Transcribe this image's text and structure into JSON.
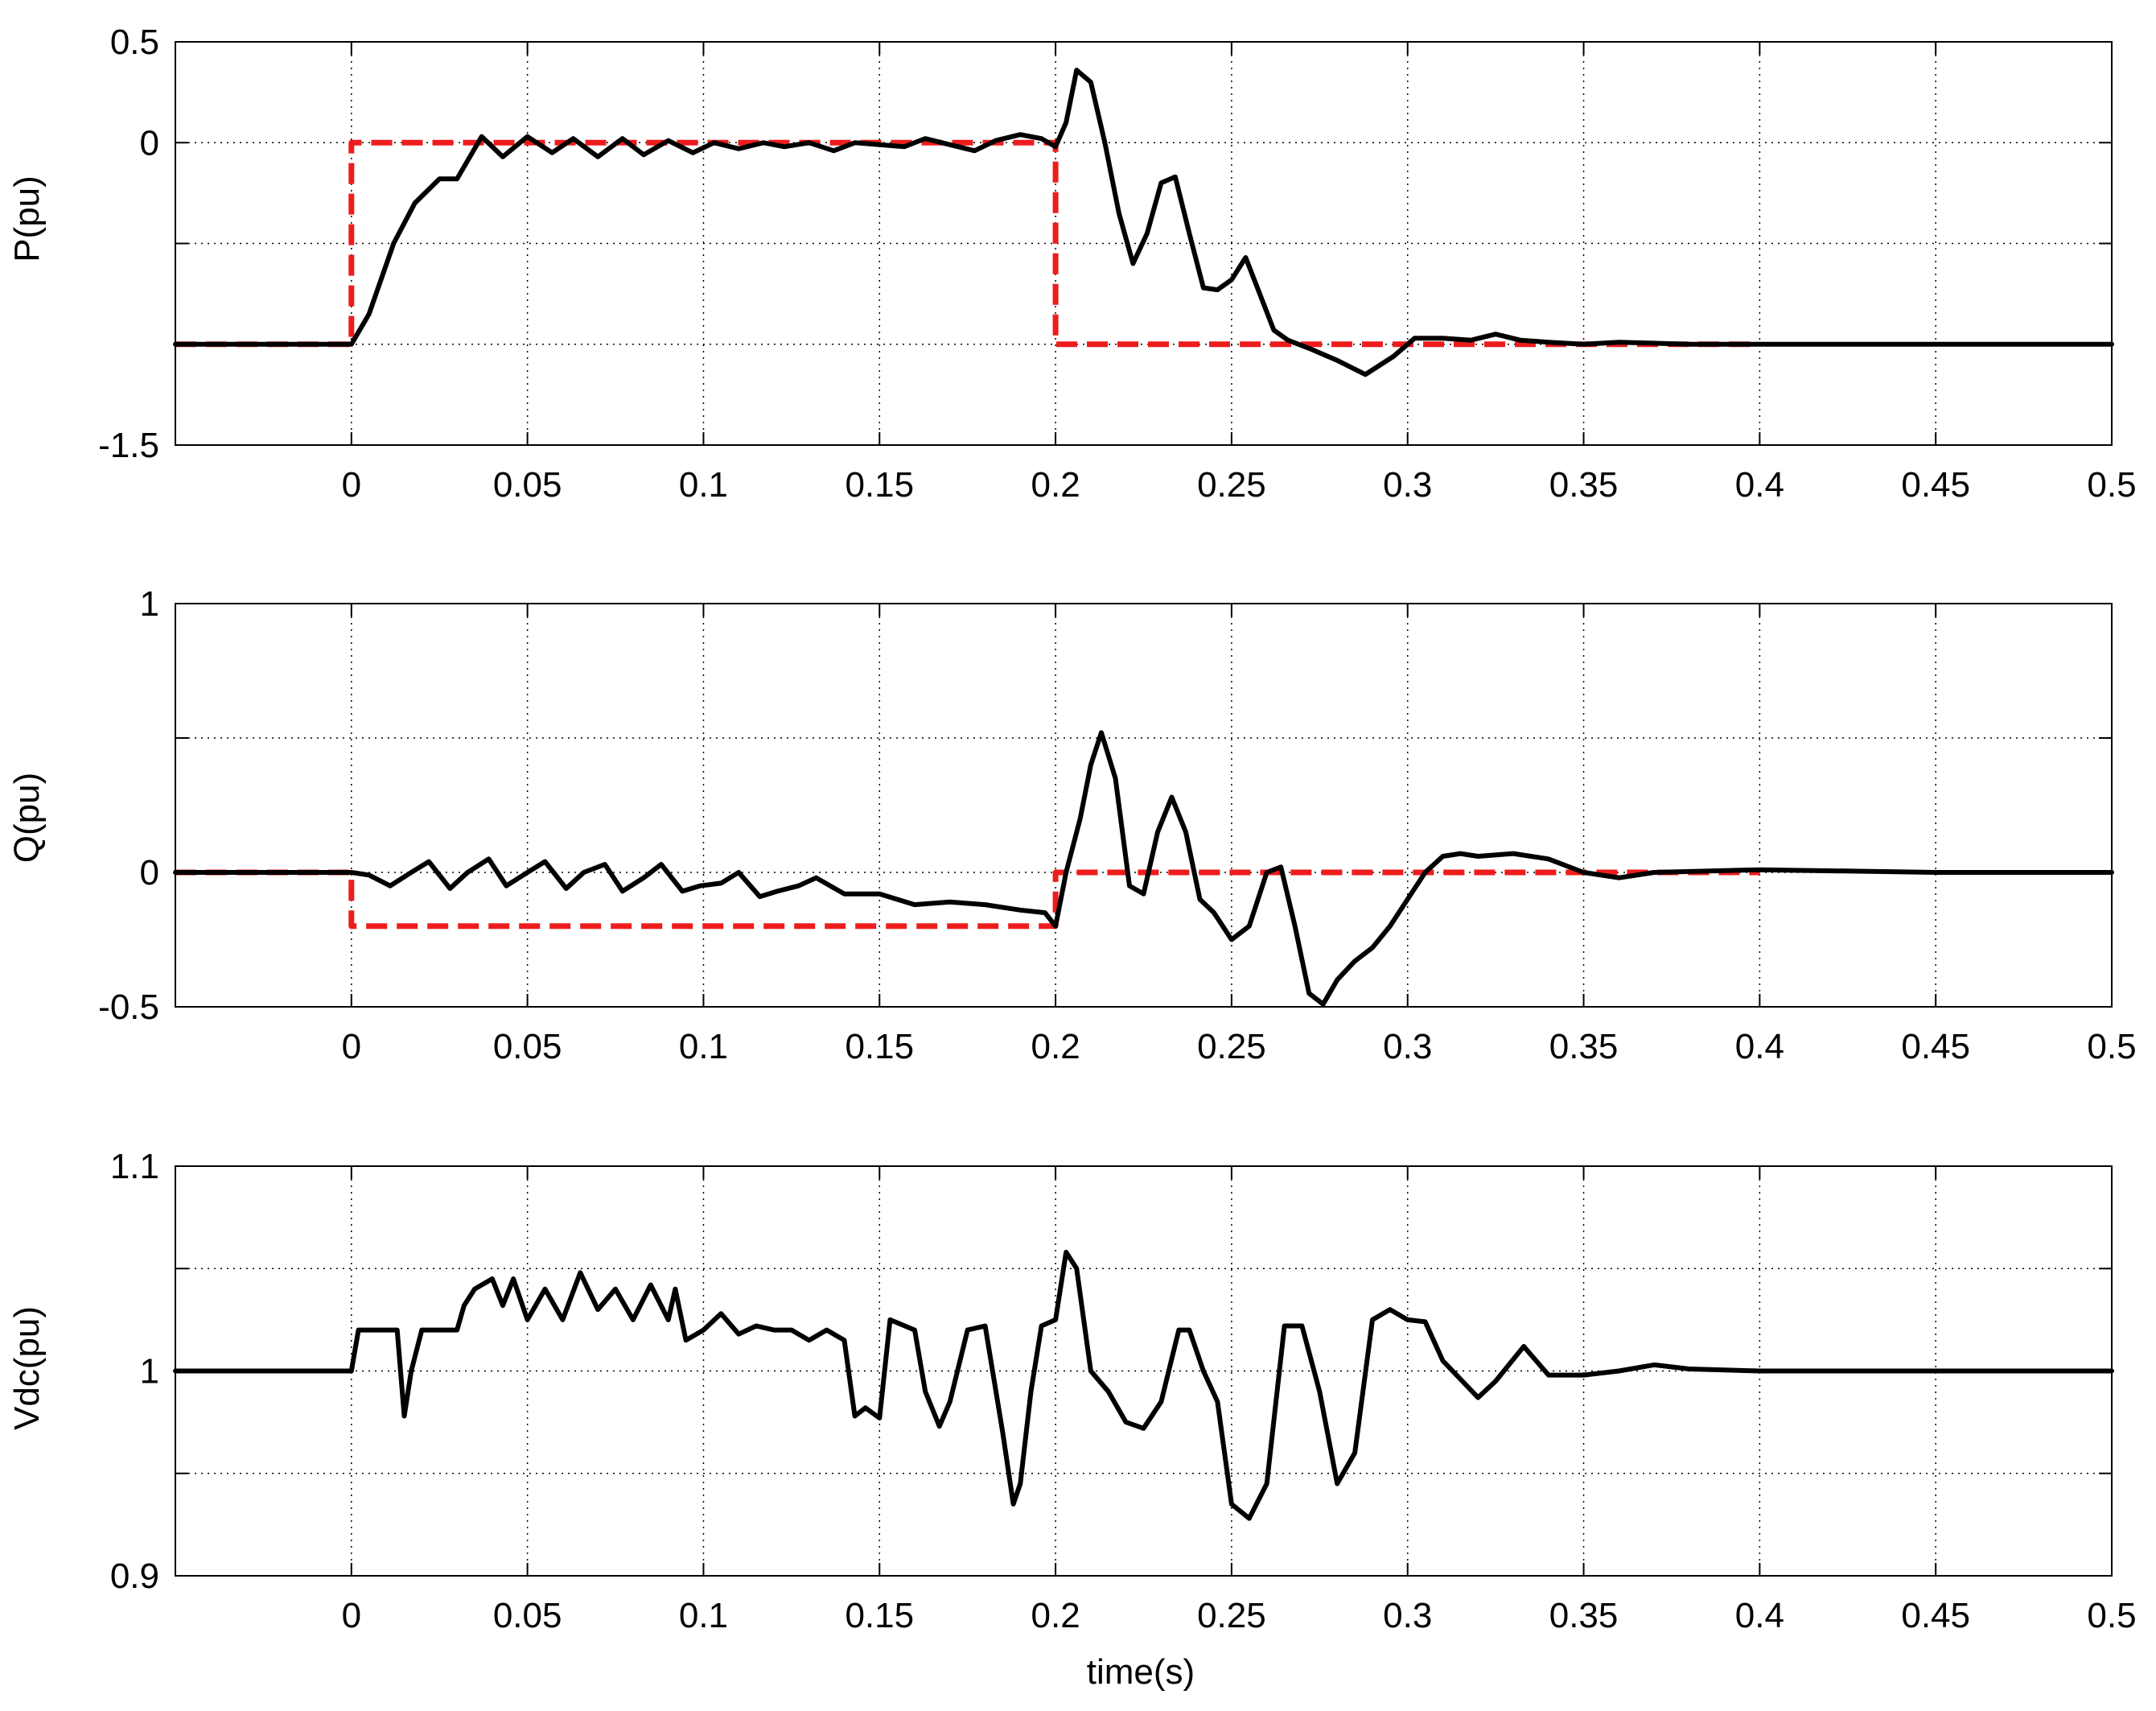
{
  "chart_data": [
    {
      "type": "line",
      "ylabel": "P(pu)",
      "xlim": [
        -0.05,
        0.5
      ],
      "ylim": [
        -1.5,
        0.5
      ],
      "xticks": [
        0,
        0.05,
        0.1,
        0.15,
        0.2,
        0.25,
        0.3,
        0.35,
        0.4,
        0.45,
        0.5
      ],
      "xtick_labels": [
        "0",
        "0.05",
        "0.1",
        "0.15",
        "0.2",
        "0.25",
        "0.3",
        "0.35",
        "0.4",
        "0.45",
        "0.5"
      ],
      "yticks": [
        -1.5,
        -1,
        -0.5,
        0,
        0.5
      ],
      "ytick_labels": [
        "-1.5",
        "",
        "",
        "0",
        "0.5"
      ],
      "grid": true,
      "series": [
        {
          "role": "measured",
          "color": "#000000",
          "style": "solid",
          "x": [
            -0.05,
            0,
            0.005,
            0.012,
            0.018,
            0.025,
            0.03,
            0.037,
            0.043,
            0.05,
            0.057,
            0.063,
            0.07,
            0.077,
            0.083,
            0.09,
            0.097,
            0.103,
            0.11,
            0.117,
            0.123,
            0.13,
            0.137,
            0.143,
            0.15,
            0.157,
            0.163,
            0.17,
            0.177,
            0.183,
            0.19,
            0.196,
            0.2,
            0.203,
            0.206,
            0.21,
            0.214,
            0.218,
            0.222,
            0.226,
            0.23,
            0.234,
            0.238,
            0.242,
            0.246,
            0.25,
            0.254,
            0.258,
            0.262,
            0.266,
            0.272,
            0.28,
            0.288,
            0.296,
            0.302,
            0.31,
            0.318,
            0.325,
            0.332,
            0.34,
            0.35,
            0.36,
            0.38,
            0.4,
            0.45,
            0.5
          ],
          "y": [
            -1,
            -1,
            -0.85,
            -0.5,
            -0.3,
            -0.18,
            -0.18,
            0.03,
            -0.07,
            0.03,
            -0.05,
            0.02,
            -0.07,
            0.02,
            -0.06,
            0.01,
            -0.05,
            0.0,
            -0.03,
            0.0,
            -0.02,
            0.0,
            -0.04,
            0.0,
            -0.01,
            -0.02,
            0.02,
            -0.01,
            -0.04,
            0.01,
            0.04,
            0.02,
            -0.02,
            0.1,
            0.36,
            0.3,
            0.0,
            -0.35,
            -0.6,
            -0.45,
            -0.2,
            -0.17,
            -0.45,
            -0.72,
            -0.73,
            -0.68,
            -0.57,
            -0.75,
            -0.93,
            -0.98,
            -1.02,
            -1.08,
            -1.15,
            -1.06,
            -0.97,
            -0.97,
            -0.98,
            -0.95,
            -0.98,
            -0.99,
            -1.0,
            -0.99,
            -1.0,
            -1.0,
            -1.0,
            -1.0
          ]
        },
        {
          "role": "reference",
          "color": "#ee1c1c",
          "style": "dashed",
          "x": [
            -0.05,
            0,
            0,
            0.2,
            0.2,
            0.4
          ],
          "y": [
            -1,
            -1,
            0,
            0,
            -1,
            -1
          ]
        }
      ]
    },
    {
      "type": "line",
      "ylabel": "Q(pu)",
      "xlim": [
        -0.05,
        0.5
      ],
      "ylim": [
        -0.5,
        1
      ],
      "xticks": [
        0,
        0.05,
        0.1,
        0.15,
        0.2,
        0.25,
        0.3,
        0.35,
        0.4,
        0.45,
        0.5
      ],
      "xtick_labels": [
        "0",
        "0.05",
        "0.1",
        "0.15",
        "0.2",
        "0.25",
        "0.3",
        "0.35",
        "0.4",
        "0.45",
        "0.5"
      ],
      "yticks": [
        -0.5,
        0,
        0.5,
        1
      ],
      "ytick_labels": [
        "-0.5",
        "0",
        "",
        "1"
      ],
      "grid": true,
      "series": [
        {
          "role": "measured",
          "color": "#000000",
          "style": "solid",
          "x": [
            -0.05,
            0,
            0.005,
            0.011,
            0.017,
            0.022,
            0.028,
            0.033,
            0.039,
            0.044,
            0.05,
            0.055,
            0.061,
            0.066,
            0.072,
            0.077,
            0.083,
            0.088,
            0.094,
            0.099,
            0.105,
            0.11,
            0.116,
            0.121,
            0.127,
            0.132,
            0.14,
            0.15,
            0.16,
            0.17,
            0.18,
            0.19,
            0.197,
            0.2,
            0.203,
            0.207,
            0.21,
            0.213,
            0.217,
            0.221,
            0.225,
            0.229,
            0.233,
            0.237,
            0.241,
            0.245,
            0.25,
            0.255,
            0.26,
            0.264,
            0.268,
            0.272,
            0.276,
            0.28,
            0.285,
            0.29,
            0.295,
            0.3,
            0.305,
            0.31,
            0.315,
            0.32,
            0.33,
            0.34,
            0.35,
            0.36,
            0.37,
            0.4,
            0.45,
            0.5
          ],
          "y": [
            0,
            0,
            -0.01,
            -0.05,
            0.0,
            0.04,
            -0.06,
            0.0,
            0.05,
            -0.05,
            0.0,
            0.04,
            -0.06,
            0.0,
            0.03,
            -0.07,
            -0.02,
            0.03,
            -0.07,
            -0.05,
            -0.04,
            0.0,
            -0.09,
            -0.07,
            -0.05,
            -0.02,
            -0.08,
            -0.08,
            -0.12,
            -0.11,
            -0.12,
            -0.14,
            -0.15,
            -0.2,
            0.0,
            0.2,
            0.4,
            0.52,
            0.35,
            -0.05,
            -0.08,
            0.15,
            0.28,
            0.15,
            -0.1,
            -0.15,
            -0.25,
            -0.2,
            0.0,
            0.02,
            -0.2,
            -0.45,
            -0.49,
            -0.4,
            -0.33,
            -0.28,
            -0.2,
            -0.1,
            0.0,
            0.06,
            0.07,
            0.06,
            0.07,
            0.05,
            0.0,
            -0.02,
            0.0,
            0.01,
            0.0,
            0.0
          ]
        },
        {
          "role": "reference",
          "color": "#ee1c1c",
          "style": "dashed",
          "x": [
            -0.05,
            0,
            0,
            0.2,
            0.2,
            0.4
          ],
          "y": [
            0,
            0,
            -0.2,
            -0.2,
            0,
            0
          ]
        }
      ]
    },
    {
      "type": "line",
      "ylabel": "Vdc(pu)",
      "xlabel": "time(s)",
      "xlim": [
        -0.05,
        0.5
      ],
      "ylim": [
        0.9,
        1.1
      ],
      "xticks": [
        0,
        0.05,
        0.1,
        0.15,
        0.2,
        0.25,
        0.3,
        0.35,
        0.4,
        0.45,
        0.5
      ],
      "xtick_labels": [
        "0",
        "0.05",
        "0.1",
        "0.15",
        "0.2",
        "0.25",
        "0.3",
        "0.35",
        "0.4",
        "0.45",
        "0.5"
      ],
      "yticks": [
        0.9,
        0.95,
        1,
        1.05,
        1.1
      ],
      "ytick_labels": [
        "0.9",
        "",
        "1",
        "",
        "1.1"
      ],
      "grid": true,
      "series": [
        {
          "role": "measured",
          "color": "#000000",
          "style": "solid",
          "x": [
            -0.05,
            0,
            0.002,
            0.01,
            0.013,
            0.015,
            0.017,
            0.02,
            0.03,
            0.032,
            0.035,
            0.04,
            0.043,
            0.046,
            0.05,
            0.055,
            0.06,
            0.065,
            0.07,
            0.075,
            0.08,
            0.085,
            0.09,
            0.092,
            0.095,
            0.1,
            0.105,
            0.11,
            0.115,
            0.12,
            0.125,
            0.13,
            0.135,
            0.14,
            0.143,
            0.146,
            0.15,
            0.153,
            0.16,
            0.163,
            0.167,
            0.17,
            0.175,
            0.18,
            0.185,
            0.188,
            0.19,
            0.193,
            0.196,
            0.2,
            0.203,
            0.206,
            0.21,
            0.215,
            0.22,
            0.225,
            0.23,
            0.235,
            0.238,
            0.242,
            0.246,
            0.25,
            0.255,
            0.26,
            0.265,
            0.27,
            0.275,
            0.28,
            0.285,
            0.29,
            0.295,
            0.3,
            0.305,
            0.31,
            0.32,
            0.325,
            0.333,
            0.34,
            0.345,
            0.35,
            0.36,
            0.37,
            0.38,
            0.4,
            0.45,
            0.5
          ],
          "y": [
            1.0,
            1.0,
            1.02,
            1.02,
            1.02,
            0.978,
            1.0,
            1.02,
            1.02,
            1.032,
            1.04,
            1.045,
            1.032,
            1.045,
            1.025,
            1.04,
            1.025,
            1.048,
            1.03,
            1.04,
            1.025,
            1.042,
            1.025,
            1.04,
            1.015,
            1.02,
            1.028,
            1.018,
            1.022,
            1.02,
            1.02,
            1.015,
            1.02,
            1.015,
            0.978,
            0.982,
            0.977,
            1.025,
            1.02,
            0.99,
            0.973,
            0.985,
            1.02,
            1.022,
            0.97,
            0.935,
            0.945,
            0.99,
            1.022,
            1.025,
            1.058,
            1.05,
            1.0,
            0.99,
            0.975,
            0.972,
            0.985,
            1.02,
            1.02,
            1.0,
            0.985,
            0.935,
            0.928,
            0.945,
            1.022,
            1.022,
            0.99,
            0.945,
            0.96,
            1.025,
            1.03,
            1.025,
            1.024,
            1.005,
            0.987,
            0.995,
            1.012,
            0.998,
            0.998,
            0.998,
            1.0,
            1.003,
            1.001,
            1.0,
            1.0,
            1.0
          ]
        }
      ]
    }
  ]
}
